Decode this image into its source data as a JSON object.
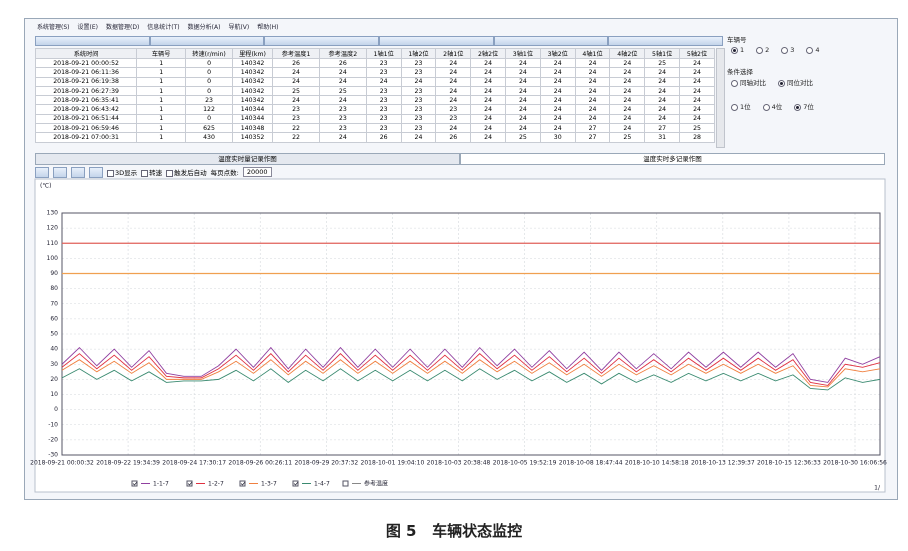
{
  "menu": [
    "系统管理(S)",
    "设置(E)",
    "数据管理(D)",
    "信息统计(T)",
    "数据分析(A)",
    "导航(V)",
    "帮助(H)"
  ],
  "table": {
    "columns": [
      "系统时间",
      "车辆号",
      "转速(r/min)",
      "里程(km)",
      "参考温度1",
      "参考温度2",
      "1轴1位",
      "1轴2位",
      "2轴1位",
      "2轴2位",
      "3轴1位",
      "3轴2位",
      "4轴1位",
      "4轴2位",
      "5轴1位",
      "5轴2位"
    ],
    "rows": [
      [
        "2018-09-21 00:00:52",
        1,
        0,
        140342,
        26,
        26,
        23,
        23,
        24,
        24,
        24,
        24,
        24,
        24,
        25,
        24
      ],
      [
        "2018-09-21 06:11:36",
        1,
        0,
        140342,
        24,
        24,
        23,
        23,
        24,
        24,
        24,
        24,
        24,
        24,
        24,
        24
      ],
      [
        "2018-09-21 06:19:38",
        1,
        0,
        140342,
        24,
        24,
        24,
        24,
        24,
        24,
        24,
        24,
        24,
        24,
        24,
        24
      ],
      [
        "2018-09-21 06:27:39",
        1,
        0,
        140342,
        25,
        25,
        23,
        23,
        24,
        24,
        24,
        24,
        24,
        24,
        24,
        24
      ],
      [
        "2018-09-21 06:35:41",
        1,
        23,
        140342,
        24,
        24,
        23,
        23,
        24,
        24,
        24,
        24,
        24,
        24,
        24,
        24
      ],
      [
        "2018-09-21 06:43:42",
        1,
        122,
        140344,
        23,
        23,
        23,
        23,
        23,
        24,
        24,
        24,
        24,
        24,
        24,
        24
      ],
      [
        "2018-09-21 06:51:44",
        1,
        0,
        140344,
        23,
        23,
        23,
        23,
        23,
        24,
        24,
        24,
        24,
        24,
        24,
        24
      ],
      [
        "2018-09-21 06:59:46",
        1,
        625,
        140348,
        22,
        23,
        23,
        23,
        24,
        24,
        24,
        24,
        27,
        24,
        27,
        25
      ],
      [
        "2018-09-21 07:00:31",
        1,
        430,
        140352,
        22,
        24,
        26,
        24,
        26,
        24,
        25,
        30,
        27,
        25,
        31,
        28
      ]
    ]
  },
  "side_panel": {
    "vehicle_title": "车辆号",
    "vehicles": [
      "1",
      "2",
      "3",
      "4"
    ],
    "vehicle_selected": 0,
    "condition_title": "条件选择",
    "conditions": [
      "同轴对比",
      "同位对比"
    ],
    "condition_selected": 1,
    "positions": [
      "1位",
      "4位",
      "7位"
    ],
    "position_selected": 2
  },
  "tabs": [
    "温度实时量记录作图",
    "温度实时多记录作图"
  ],
  "active_tab": 1,
  "toolbar": {
    "checkboxes": [
      "3D显示",
      "转速",
      "触发后自动"
    ],
    "points_label": "每页点数:",
    "points_value": "20000"
  },
  "chart_data": {
    "type": "line",
    "y_unit": "(℃)",
    "ylim": [
      -30,
      130
    ],
    "yticks": [
      -30,
      -20,
      -10,
      0,
      10,
      20,
      30,
      40,
      50,
      60,
      70,
      80,
      90,
      100,
      110,
      120,
      130
    ],
    "grid": true,
    "x_labels": [
      "2018-09-21 00:00:32",
      "2018-09-22 19:34:39",
      "2018-09-24 17:30:17",
      "2018-09-26 00:26:11",
      "2018-09-29 20:37:32",
      "2018-10-01 19:04:10",
      "2018-10-03 20:38:48",
      "2018-10-05 19:52:19",
      "2018-10-08 18:47:44",
      "2018-10-10 14:58:18",
      "2018-10-13 12:39:37",
      "2018-10-15 12:36:33",
      "2018-10-30 16:06:56"
    ],
    "reference_lines": [
      {
        "value": 110,
        "color": "#e0605a"
      },
      {
        "value": 90,
        "color": "#f0a050"
      }
    ],
    "series": [
      {
        "name": "1-1-7",
        "color": "#9040a0",
        "values": [
          30,
          41,
          29,
          40,
          28,
          39,
          24,
          22,
          22,
          29,
          40,
          28,
          41,
          27,
          40,
          28,
          41,
          28,
          40,
          28,
          40,
          28,
          40,
          28,
          41,
          29,
          40,
          28,
          39,
          27,
          38,
          26,
          38,
          27,
          37,
          27,
          38,
          28,
          38,
          28,
          38,
          28,
          37,
          20,
          18,
          34,
          30,
          35
        ]
      },
      {
        "name": "1-2-7",
        "color": "#e03040",
        "values": [
          28,
          37,
          27,
          36,
          26,
          35,
          22,
          21,
          21,
          27,
          36,
          26,
          37,
          25,
          36,
          26,
          37,
          26,
          36,
          26,
          36,
          26,
          36,
          26,
          37,
          27,
          36,
          26,
          35,
          25,
          34,
          24,
          34,
          25,
          33,
          25,
          34,
          26,
          34,
          26,
          34,
          26,
          33,
          18,
          16,
          30,
          28,
          31
        ]
      },
      {
        "name": "1-3-7",
        "color": "#f08040",
        "values": [
          26,
          33,
          25,
          32,
          24,
          31,
          20,
          20,
          20,
          25,
          32,
          24,
          33,
          23,
          32,
          24,
          33,
          24,
          32,
          24,
          32,
          24,
          32,
          24,
          33,
          25,
          32,
          24,
          31,
          23,
          30,
          22,
          30,
          23,
          29,
          23,
          30,
          24,
          30,
          24,
          30,
          24,
          29,
          16,
          15,
          27,
          25,
          27
        ]
      },
      {
        "name": "1-4-7",
        "color": "#3a8a70",
        "values": [
          21,
          27,
          20,
          26,
          19,
          25,
          18,
          19,
          19,
          20,
          26,
          19,
          27,
          18,
          26,
          19,
          27,
          19,
          26,
          19,
          26,
          19,
          26,
          19,
          27,
          20,
          26,
          19,
          25,
          18,
          24,
          17,
          24,
          18,
          23,
          18,
          24,
          19,
          24,
          19,
          24,
          19,
          23,
          14,
          13,
          21,
          18,
          20
        ]
      }
    ],
    "unchecked_legend": "参考温度"
  },
  "page_indicator": "1/",
  "caption": "图 5   车辆状态监控"
}
